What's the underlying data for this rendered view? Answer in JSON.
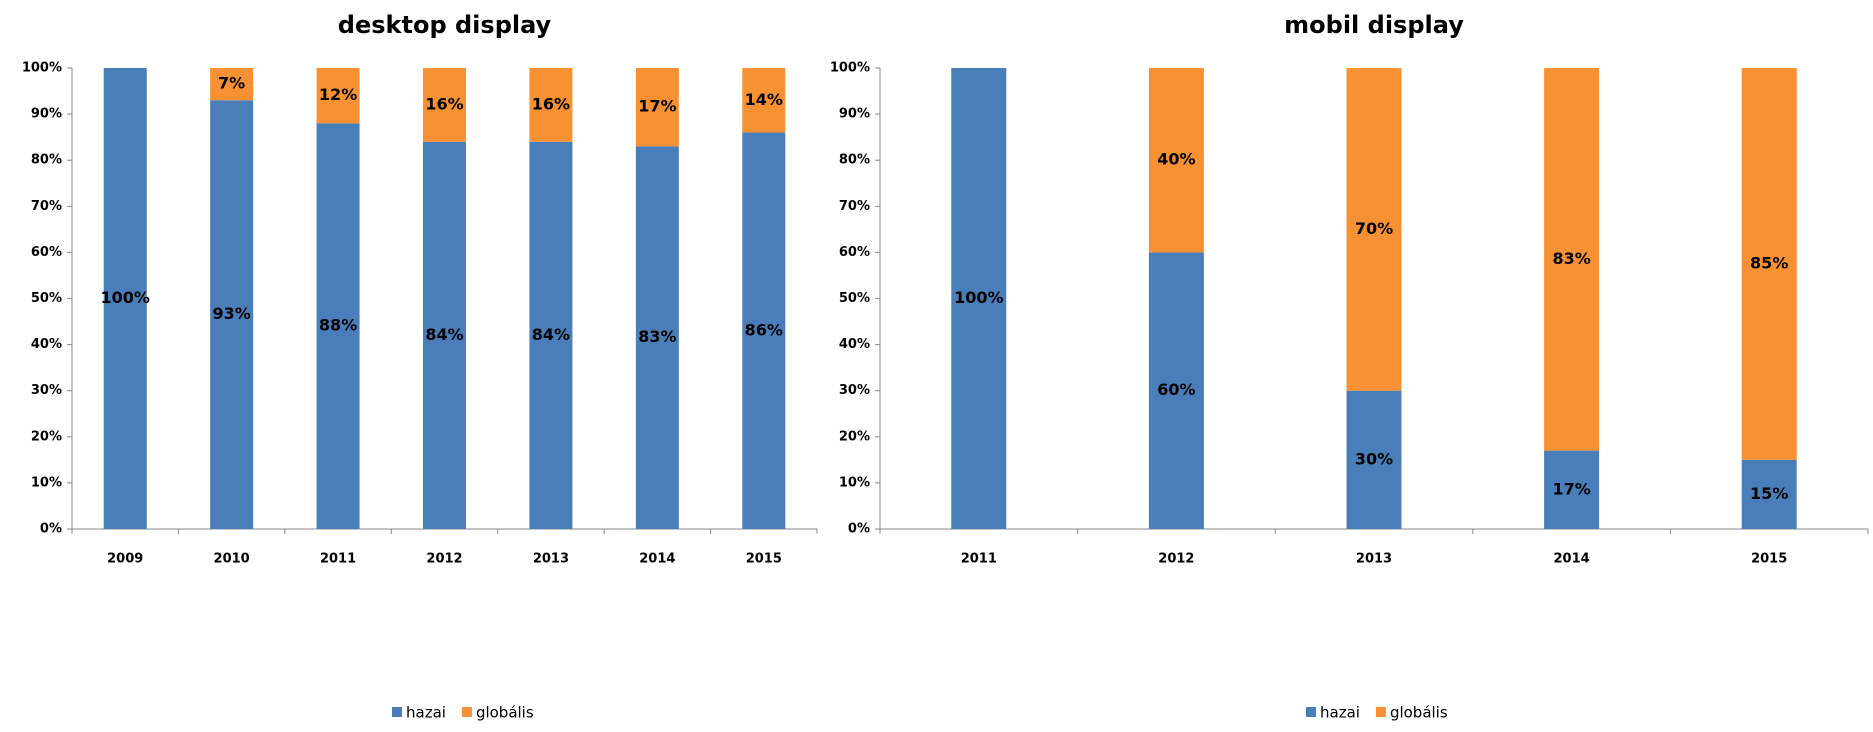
{
  "chart_data": [
    {
      "type": "stacked_bar",
      "title": "desktop display",
      "categories": [
        "2009",
        "2010",
        "2011",
        "2012",
        "2013",
        "2014",
        "2015"
      ],
      "series": [
        {
          "name": "hazai",
          "color": "#4a7ebb",
          "values": [
            100,
            93,
            88,
            84,
            84,
            83,
            86
          ],
          "value_labels": [
            "100%",
            "93%",
            "88%",
            "84%",
            "84%",
            "83%",
            "86%"
          ]
        },
        {
          "name": "globális",
          "color": "#f79133",
          "values": [
            0,
            7,
            12,
            16,
            16,
            17,
            14
          ],
          "value_labels": [
            null,
            "7%",
            "12%",
            "16%",
            "16%",
            "17%",
            "14%"
          ]
        }
      ],
      "ylim": [
        0,
        100
      ],
      "yticks": [
        {
          "value": 0,
          "label": "0%"
        },
        {
          "value": 10,
          "label": "10%"
        },
        {
          "value": 20,
          "label": "20%"
        },
        {
          "value": 30,
          "label": "30%"
        },
        {
          "value": 40,
          "label": "40%"
        },
        {
          "value": 50,
          "label": "50%"
        },
        {
          "value": 60,
          "label": "60%"
        },
        {
          "value": 70,
          "label": "70%"
        },
        {
          "value": 80,
          "label": "80%"
        },
        {
          "value": 90,
          "label": "90%"
        },
        {
          "value": 100,
          "label": "100%"
        }
      ],
      "grid": false,
      "legend": "bottom"
    },
    {
      "type": "stacked_bar",
      "title": "mobil display",
      "categories": [
        "2011",
        "2012",
        "2013",
        "2014",
        "2015"
      ],
      "series": [
        {
          "name": "hazai",
          "color": "#4a7ebb",
          "values": [
            100,
            60,
            30,
            17,
            15
          ],
          "value_labels": [
            "100%",
            "60%",
            "30%",
            "17%",
            "15%"
          ]
        },
        {
          "name": "globális",
          "color": "#f79133",
          "values": [
            0,
            40,
            70,
            83,
            85
          ],
          "value_labels": [
            null,
            "40%",
            "70%",
            "83%",
            "85%"
          ]
        }
      ],
      "ylim": [
        0,
        100
      ],
      "yticks": [
        {
          "value": 0,
          "label": "0%"
        },
        {
          "value": 10,
          "label": "10%"
        },
        {
          "value": 20,
          "label": "20%"
        },
        {
          "value": 30,
          "label": "30%"
        },
        {
          "value": 40,
          "label": "40%"
        },
        {
          "value": 50,
          "label": "50%"
        },
        {
          "value": 60,
          "label": "60%"
        },
        {
          "value": 70,
          "label": "70%"
        },
        {
          "value": 80,
          "label": "80%"
        },
        {
          "value": 90,
          "label": "90%"
        },
        {
          "value": 100,
          "label": "100%"
        }
      ],
      "grid": false,
      "legend": "bottom"
    }
  ]
}
